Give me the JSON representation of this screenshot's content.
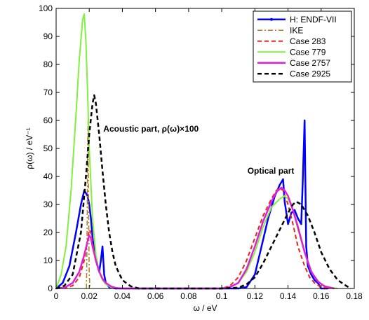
{
  "chart_data": {
    "type": "line",
    "xlabel": "ω / eV",
    "ylabel": "ρ(ω) / eV⁻¹",
    "xlim": [
      0,
      0.18
    ],
    "ylim": [
      0,
      100
    ],
    "xticks": [
      0,
      0.02,
      0.04,
      0.06,
      0.08,
      0.1,
      0.12,
      0.14,
      0.16,
      0.18
    ],
    "xtick_labels": [
      "0",
      "0.02",
      "0.04",
      "0.06",
      "0.08",
      "0.1",
      "0.12",
      "0.14",
      "0.16",
      "0.18"
    ],
    "yticks": [
      0,
      10,
      20,
      30,
      40,
      50,
      60,
      70,
      80,
      90,
      100
    ],
    "ytick_labels": [
      "0",
      "10",
      "20",
      "30",
      "40",
      "50",
      "60",
      "70",
      "80",
      "90",
      "100"
    ],
    "grid": false,
    "legend_position": "top-right",
    "annotations": [
      {
        "text": "Acoustic part, ρ(ω)×100",
        "x": 0.0285,
        "y": 56
      },
      {
        "text": "Optical part",
        "x": 0.1155,
        "y": 41
      }
    ],
    "series": [
      {
        "name": "H: ENDF-VII",
        "color": "#0000ff",
        "dash": "solid",
        "width": 2.5,
        "marker": true,
        "x": [
          0,
          0.004,
          0.008,
          0.012,
          0.015,
          0.017,
          0.018,
          0.019,
          0.02,
          0.021,
          0.022,
          0.024,
          0.026,
          0.027,
          0.028,
          0.029,
          0.03,
          0.032,
          0.034,
          0.036,
          0.1,
          0.11,
          0.115,
          0.12,
          0.124,
          0.128,
          0.132,
          0.135,
          0.137,
          0.138,
          0.14,
          0.142,
          0.144,
          0.146,
          0.148,
          0.149,
          0.15,
          0.151,
          0.152,
          0.154,
          0.156,
          0.158,
          0.159,
          0.16,
          0.164
        ],
        "y": [
          0,
          2,
          8,
          20,
          30,
          35,
          34,
          33,
          30,
          25,
          18,
          10,
          6,
          10,
          15,
          5,
          2,
          0.5,
          0.2,
          0,
          0,
          0,
          0.5,
          5,
          15,
          25,
          33,
          37,
          39,
          31,
          23,
          27,
          28,
          25,
          23,
          40,
          60,
          15,
          8,
          5,
          3,
          2,
          1,
          0,
          0
        ]
      },
      {
        "name": "IKE",
        "color": "#b87a1f",
        "dash": "dashdot",
        "width": 1.5,
        "x": [
          0.0183,
          0.0185,
          0.0188,
          0.019,
          0.0193,
          0.0195,
          0.0198,
          0.02,
          0.0205
        ],
        "y": [
          0,
          8,
          28,
          52,
          60,
          40,
          15,
          5,
          0
        ]
      },
      {
        "name": "Case 283",
        "color": "#e8251b",
        "dash": "dashed",
        "width": 2,
        "x": [
          0,
          0.005,
          0.01,
          0.014,
          0.017,
          0.019,
          0.02,
          0.021,
          0.022,
          0.024,
          0.026,
          0.028,
          0.03,
          0.032,
          0.035,
          0.04,
          0.1,
          0.105,
          0.11,
          0.115,
          0.12,
          0.125,
          0.13,
          0.133,
          0.135,
          0.137,
          0.14,
          0.143,
          0.146,
          0.15,
          0.153,
          0.156,
          0.16,
          0.165
        ],
        "y": [
          0,
          0.2,
          1,
          4,
          10,
          17,
          21,
          20,
          16,
          10,
          6,
          3.5,
          2,
          1,
          0.3,
          0,
          0,
          1,
          4,
          10,
          18,
          26,
          32,
          35,
          36,
          35,
          30,
          23,
          15,
          8,
          4,
          2,
          0.5,
          0
        ]
      },
      {
        "name": "Case 779",
        "color": "#80f040",
        "dash": "solid",
        "width": 2,
        "x": [
          0,
          0.003,
          0.006,
          0.009,
          0.012,
          0.014,
          0.016,
          0.017,
          0.018,
          0.019,
          0.02,
          0.022,
          0.024,
          0.026,
          0.028,
          0.03,
          0.033,
          0.036,
          0.04,
          0.1,
          0.105,
          0.11,
          0.115,
          0.12,
          0.125,
          0.13,
          0.135,
          0.138,
          0.14,
          0.143,
          0.146,
          0.15,
          0.155,
          0.16,
          0.165,
          0.17
        ],
        "y": [
          0,
          5,
          15,
          35,
          62,
          82,
          96,
          98,
          88,
          70,
          50,
          25,
          12,
          6,
          3,
          1.5,
          0.5,
          0.1,
          0,
          0,
          0.5,
          2,
          6,
          13,
          22,
          29,
          32,
          33,
          32,
          28,
          21,
          13,
          5,
          1.5,
          0.3,
          0
        ]
      },
      {
        "name": "Case 2757",
        "color": "#e020d8",
        "dash": "solid",
        "width": 2.5,
        "x": [
          0,
          0.005,
          0.01,
          0.014,
          0.017,
          0.019,
          0.02,
          0.021,
          0.022,
          0.024,
          0.026,
          0.028,
          0.03,
          0.033,
          0.036,
          0.04,
          0.1,
          0.105,
          0.11,
          0.115,
          0.12,
          0.125,
          0.13,
          0.133,
          0.136,
          0.138,
          0.14,
          0.143,
          0.146,
          0.15,
          0.154,
          0.158,
          0.162,
          0.168
        ],
        "y": [
          0,
          0.3,
          2,
          6,
          12,
          17,
          19,
          18,
          15,
          10,
          6,
          3.5,
          2,
          0.8,
          0.2,
          0,
          0,
          0.5,
          2,
          7,
          15,
          24,
          31,
          34.5,
          36,
          35,
          33,
          28,
          22,
          13,
          6,
          2.5,
          0.8,
          0
        ]
      },
      {
        "name": "Case 2925",
        "color": "#000000",
        "dash": "dashed",
        "width": 2.5,
        "x": [
          0,
          0.005,
          0.01,
          0.015,
          0.018,
          0.02,
          0.022,
          0.023,
          0.024,
          0.026,
          0.028,
          0.03,
          0.032,
          0.034,
          0.036,
          0.04,
          0.045,
          0.05,
          0.1,
          0.11,
          0.115,
          0.12,
          0.125,
          0.13,
          0.135,
          0.14,
          0.143,
          0.145,
          0.148,
          0.152,
          0.156,
          0.16,
          0.165,
          0.17,
          0.175,
          0.178
        ],
        "y": [
          0,
          1,
          5,
          20,
          40,
          55,
          66,
          69,
          66,
          55,
          42,
          30,
          20,
          13,
          8,
          3,
          0.8,
          0,
          0,
          0.3,
          1.5,
          4,
          9,
          15,
          21,
          27,
          30,
          31,
          30,
          26,
          20,
          13,
          7,
          3,
          1,
          0
        ]
      }
    ]
  }
}
